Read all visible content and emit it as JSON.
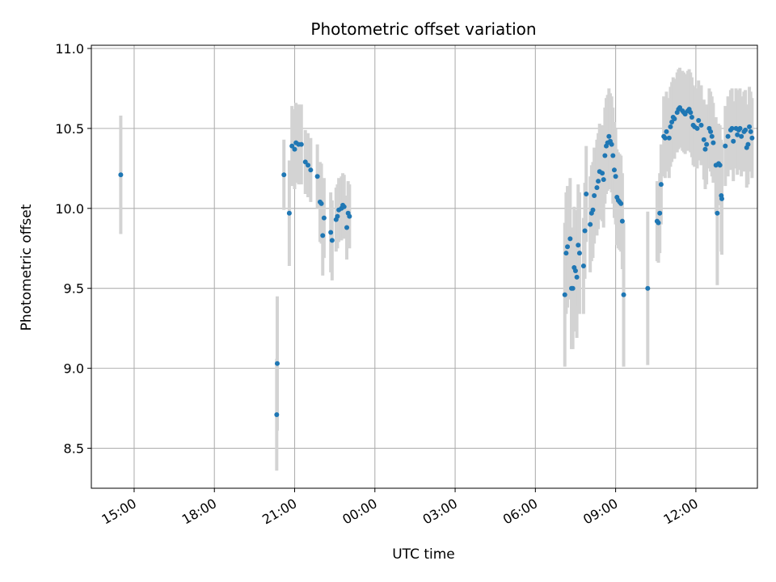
{
  "chart_data": {
    "type": "scatter",
    "title": "Photometric offset variation",
    "xlabel": "UTC time",
    "ylabel": "Photometric offset",
    "x_ticks": [
      "15:00",
      "18:00",
      "21:00",
      "00:00",
      "03:00",
      "06:00",
      "09:00",
      "12:00"
    ],
    "y_ticks": [
      "8.5",
      "9.0",
      "9.5",
      "10.0",
      "10.5",
      "11.0"
    ],
    "x_unit": "hours since 15:00 UTC (day 1)",
    "xlim": [
      -1.6,
      23.3
    ],
    "ylim": [
      8.25,
      11.02
    ],
    "grid": true,
    "colors": {
      "points": "#1f77b4",
      "error_bars": "#d3d3d3",
      "grid": "#b0b0b0"
    },
    "series": [
      {
        "points": [
          [
            -0.5,
            10.21,
            0.37
          ],
          [
            5.35,
            9.03,
            0.42
          ],
          [
            5.33,
            8.71,
            0.35
          ],
          [
            5.6,
            10.21,
            0.22
          ],
          [
            5.8,
            9.97,
            0.33
          ],
          [
            5.9,
            10.39,
            0.25
          ],
          [
            6.0,
            10.37,
            0.25
          ],
          [
            6.05,
            10.41,
            0.25
          ],
          [
            6.15,
            10.4,
            0.25
          ],
          [
            6.25,
            10.4,
            0.25
          ],
          [
            6.4,
            10.29,
            0.2
          ],
          [
            6.5,
            10.27,
            0.2
          ],
          [
            6.6,
            10.24,
            0.2
          ],
          [
            6.85,
            10.2,
            0.2
          ],
          [
            6.95,
            10.04,
            0.25
          ],
          [
            7.0,
            10.03,
            0.25
          ],
          [
            7.05,
            9.83,
            0.25
          ],
          [
            7.1,
            9.94,
            0.25
          ],
          [
            7.35,
            9.85,
            0.25
          ],
          [
            7.4,
            9.8,
            0.25
          ],
          [
            7.55,
            9.93,
            0.2
          ],
          [
            7.6,
            9.95,
            0.2
          ],
          [
            7.65,
            9.99,
            0.2
          ],
          [
            7.75,
            10.0,
            0.2
          ],
          [
            7.8,
            10.02,
            0.2
          ],
          [
            7.85,
            10.01,
            0.2
          ],
          [
            7.95,
            9.88,
            0.2
          ],
          [
            8.0,
            9.97,
            0.2
          ],
          [
            8.05,
            9.95,
            0.2
          ],
          [
            16.1,
            9.46,
            0.45
          ],
          [
            16.15,
            9.72,
            0.38
          ],
          [
            16.2,
            9.76,
            0.38
          ],
          [
            16.3,
            9.81,
            0.38
          ],
          [
            16.35,
            9.5,
            0.38
          ],
          [
            16.4,
            9.5,
            0.38
          ],
          [
            16.45,
            9.63,
            0.38
          ],
          [
            16.5,
            9.61,
            0.38
          ],
          [
            16.55,
            9.57,
            0.38
          ],
          [
            16.6,
            9.77,
            0.38
          ],
          [
            16.65,
            9.72,
            0.38
          ],
          [
            16.8,
            9.64,
            0.3
          ],
          [
            16.85,
            9.86,
            0.3
          ],
          [
            16.9,
            10.09,
            0.3
          ],
          [
            17.05,
            9.9,
            0.3
          ],
          [
            17.1,
            9.97,
            0.3
          ],
          [
            17.15,
            9.99,
            0.3
          ],
          [
            17.2,
            10.08,
            0.3
          ],
          [
            17.3,
            10.13,
            0.3
          ],
          [
            17.35,
            10.17,
            0.3
          ],
          [
            17.4,
            10.23,
            0.3
          ],
          [
            17.5,
            10.22,
            0.3
          ],
          [
            17.55,
            10.18,
            0.3
          ],
          [
            17.6,
            10.33,
            0.3
          ],
          [
            17.65,
            10.39,
            0.3
          ],
          [
            17.7,
            10.41,
            0.3
          ],
          [
            17.75,
            10.45,
            0.3
          ],
          [
            17.8,
            10.42,
            0.3
          ],
          [
            17.85,
            10.4,
            0.3
          ],
          [
            17.9,
            10.33,
            0.3
          ],
          [
            17.95,
            10.24,
            0.3
          ],
          [
            18.0,
            10.2,
            0.3
          ],
          [
            18.05,
            10.07,
            0.3
          ],
          [
            18.1,
            10.05,
            0.3
          ],
          [
            18.15,
            10.04,
            0.3
          ],
          [
            18.2,
            10.03,
            0.3
          ],
          [
            18.25,
            9.92,
            0.3
          ],
          [
            18.3,
            9.46,
            0.45
          ],
          [
            19.2,
            9.5,
            0.48
          ],
          [
            19.55,
            9.92,
            0.25
          ],
          [
            19.6,
            9.91,
            0.25
          ],
          [
            19.65,
            9.97,
            0.25
          ],
          [
            19.7,
            10.15,
            0.25
          ],
          [
            19.8,
            10.45,
            0.25
          ],
          [
            19.85,
            10.44,
            0.25
          ],
          [
            19.9,
            10.48,
            0.25
          ],
          [
            20.0,
            10.44,
            0.25
          ],
          [
            20.05,
            10.51,
            0.25
          ],
          [
            20.1,
            10.54,
            0.25
          ],
          [
            20.15,
            10.57,
            0.25
          ],
          [
            20.2,
            10.56,
            0.25
          ],
          [
            20.3,
            10.6,
            0.25
          ],
          [
            20.35,
            10.62,
            0.25
          ],
          [
            20.4,
            10.63,
            0.25
          ],
          [
            20.5,
            10.61,
            0.25
          ],
          [
            20.55,
            10.6,
            0.25
          ],
          [
            20.6,
            10.59,
            0.25
          ],
          [
            20.7,
            10.61,
            0.25
          ],
          [
            20.75,
            10.62,
            0.25
          ],
          [
            20.8,
            10.6,
            0.25
          ],
          [
            20.85,
            10.57,
            0.25
          ],
          [
            20.9,
            10.52,
            0.25
          ],
          [
            20.95,
            10.51,
            0.25
          ],
          [
            21.05,
            10.5,
            0.25
          ],
          [
            21.1,
            10.55,
            0.25
          ],
          [
            21.2,
            10.52,
            0.25
          ],
          [
            21.3,
            10.43,
            0.25
          ],
          [
            21.35,
            10.37,
            0.25
          ],
          [
            21.4,
            10.4,
            0.25
          ],
          [
            21.5,
            10.5,
            0.25
          ],
          [
            21.55,
            10.48,
            0.25
          ],
          [
            21.6,
            10.45,
            0.25
          ],
          [
            21.65,
            10.41,
            0.25
          ],
          [
            21.75,
            10.27,
            0.3
          ],
          [
            21.8,
            9.97,
            0.45
          ],
          [
            21.85,
            10.28,
            0.25
          ],
          [
            21.9,
            10.27,
            0.25
          ],
          [
            21.95,
            10.08,
            0.35
          ],
          [
            21.97,
            10.06,
            0.35
          ],
          [
            22.1,
            10.39,
            0.25
          ],
          [
            22.2,
            10.45,
            0.25
          ],
          [
            22.3,
            10.49,
            0.25
          ],
          [
            22.35,
            10.5,
            0.25
          ],
          [
            22.4,
            10.42,
            0.25
          ],
          [
            22.5,
            10.5,
            0.25
          ],
          [
            22.55,
            10.46,
            0.25
          ],
          [
            22.6,
            10.49,
            0.25
          ],
          [
            22.65,
            10.5,
            0.25
          ],
          [
            22.7,
            10.45,
            0.25
          ],
          [
            22.8,
            10.48,
            0.25
          ],
          [
            22.85,
            10.49,
            0.25
          ],
          [
            22.9,
            10.38,
            0.25
          ],
          [
            22.95,
            10.4,
            0.25
          ],
          [
            23.0,
            10.51,
            0.25
          ],
          [
            23.05,
            10.48,
            0.25
          ],
          [
            23.1,
            10.44,
            0.25
          ]
        ]
      }
    ]
  }
}
